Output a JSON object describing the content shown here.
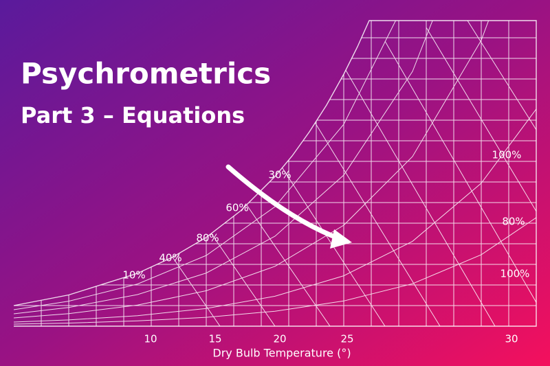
{
  "title": "Psychrometrics",
  "subtitle": "Part 3 – Equations",
  "curve_labels": [
    "30%",
    "60%",
    "80%",
    "40%",
    "10%",
    "100%",
    "80%",
    "100%"
  ],
  "x_axis": {
    "ticks": [
      "10",
      "15",
      "20",
      "25",
      "30"
    ],
    "label": "Dry Bulb Temperature (°)"
  }
}
